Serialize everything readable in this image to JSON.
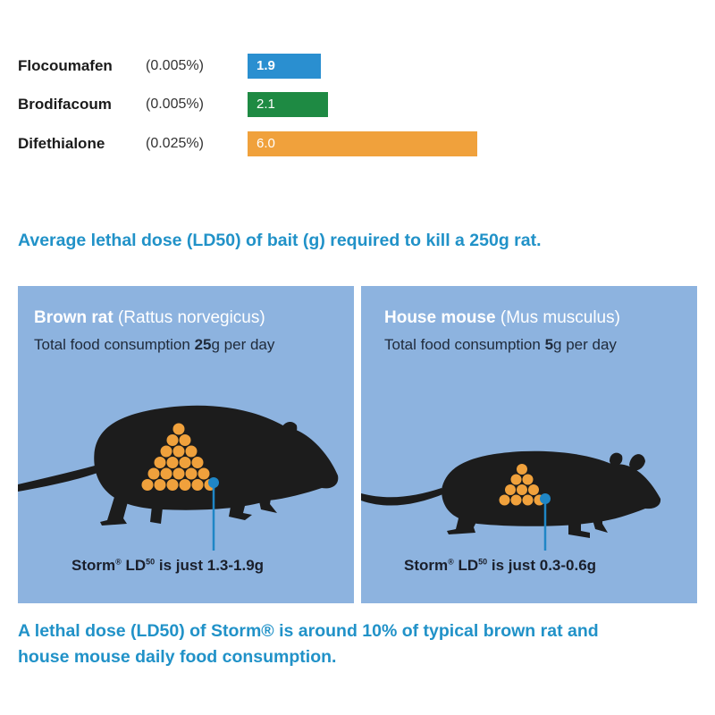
{
  "chart_data": {
    "type": "bar",
    "orientation": "horizontal",
    "categories": [
      "Flocoumafen",
      "Brodifacoum",
      "Difethialone"
    ],
    "concentrations": [
      "(0.005%)",
      "(0.005%)",
      "(0.025%)"
    ],
    "values": [
      1.9,
      2.1,
      6.0
    ],
    "value_labels": [
      "1.9",
      "2.1",
      "6.0"
    ],
    "colors": [
      "#2a8fd0",
      "#1e8a43",
      "#f0a13c"
    ],
    "xlim": [
      0,
      6.2
    ],
    "title": "Average lethal dose (LD50) of bait (g) required to kill a 250g rat.",
    "grid": false
  },
  "panels": [
    {
      "name": "Brown rat",
      "latin": " (Rattus norvegicus)",
      "consumption_pre": "Total food consumption ",
      "consumption_amount": "25",
      "consumption_post": "g per day",
      "ld_pre": "Storm",
      "ld_reg": "®",
      "ld_mid": " LD",
      "ld_sup": "50",
      "ld_post": " is just 1.3-1.9g",
      "pellet_rows": [
        1,
        2,
        3,
        4,
        5,
        6
      ]
    },
    {
      "name": "House mouse",
      "latin": " (Mus musculus)",
      "consumption_pre": "Total food consumption ",
      "consumption_amount": "5",
      "consumption_post": "g per day",
      "ld_pre": "Storm",
      "ld_reg": "®",
      "ld_mid": " LD",
      "ld_sup": "50",
      "ld_post": " is just 0.3-0.6g",
      "pellet_rows": [
        1,
        2,
        3,
        4
      ]
    }
  ],
  "footer": {
    "line1": "A lethal dose (LD50) of Storm® is around 10% of typical brown rat and",
    "line2": "house mouse daily food consumption."
  },
  "colors": {
    "accent": "#2192c8",
    "panel_bg": "#8db3df",
    "silhouette": "#1c1c1c",
    "pellet": "#f0a13c",
    "pointer": "#1f86c6"
  }
}
